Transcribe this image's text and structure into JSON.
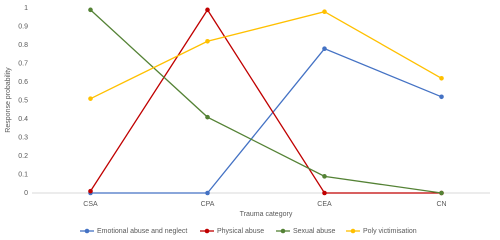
{
  "chart_data": {
    "type": "line",
    "x_label": "Trauma category",
    "y_label": "Response probability",
    "categories": [
      "CSA",
      "CPA",
      "CEA",
      "CN"
    ],
    "series": [
      {
        "name": "Emotional abuse and neglect",
        "color": "#4472c4",
        "values": [
          0,
          0,
          0.78,
          0.52
        ]
      },
      {
        "name": "Physical abuse",
        "color": "#c00000",
        "values": [
          0.01,
          0.99,
          0,
          0
        ]
      },
      {
        "name": "Sexual abuse",
        "color": "#548235",
        "values": [
          0.99,
          0.41,
          0.09,
          0
        ]
      },
      {
        "name": "Poly victimisation",
        "color": "#ffc000",
        "values": [
          0.51,
          0.82,
          0.98,
          0.62
        ]
      }
    ],
    "ylim": [
      0,
      1
    ],
    "yticks": [
      0,
      0.1,
      0.2,
      0.3,
      0.4,
      0.5,
      0.6,
      0.7,
      0.8,
      0.9,
      1
    ],
    "grid": false,
    "legend": "bottom"
  }
}
